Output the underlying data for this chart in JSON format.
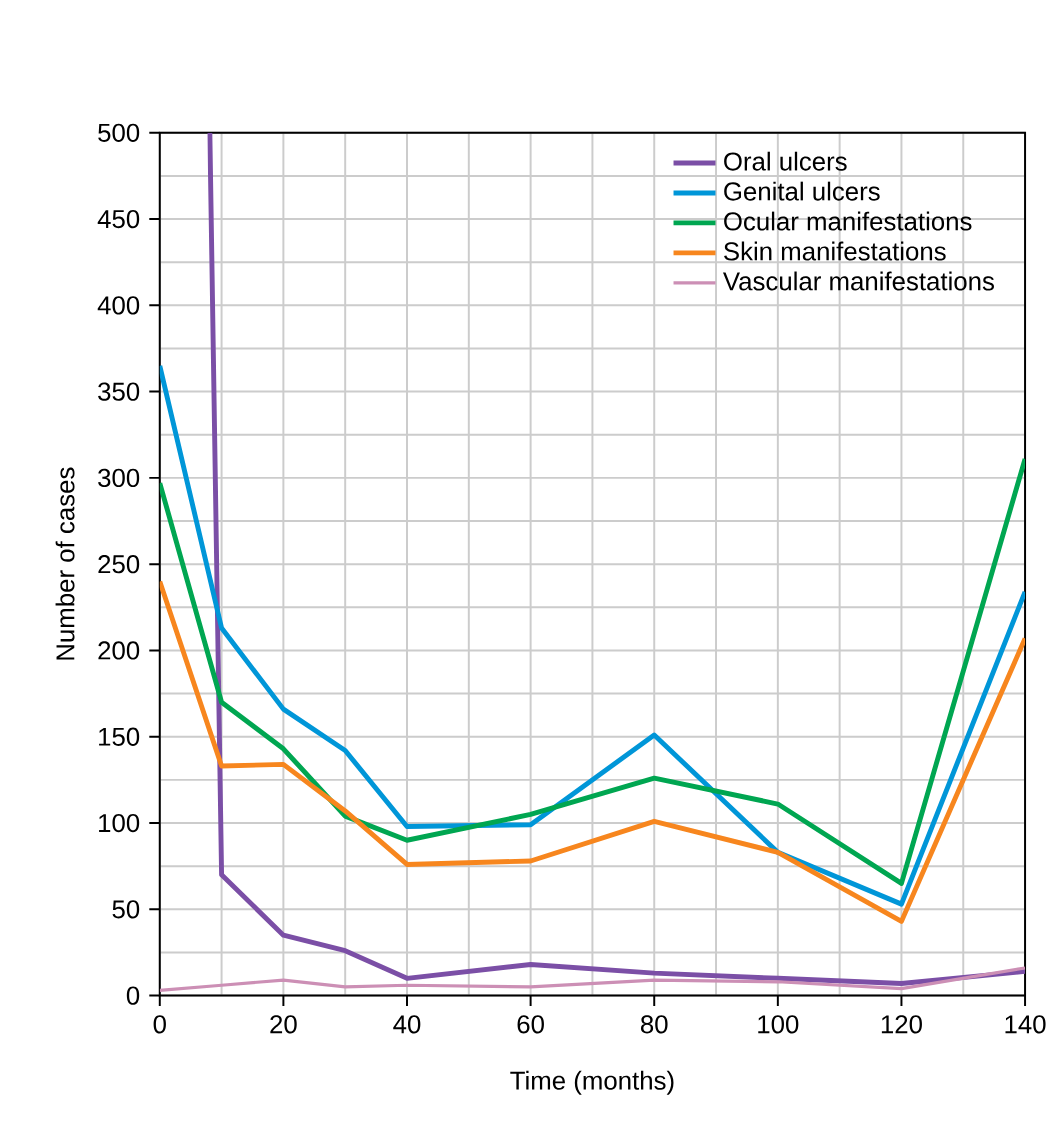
{
  "chart_data": {
    "type": "line",
    "xlabel": "Time (months)",
    "ylabel": "Number of cases",
    "x": [
      0,
      10,
      20,
      30,
      40,
      60,
      80,
      100,
      120,
      140
    ],
    "xlim": [
      0,
      140
    ],
    "xticks": [
      0,
      20,
      40,
      60,
      80,
      100,
      120,
      140
    ],
    "ylim": [
      0,
      500
    ],
    "yticks": [
      0,
      50,
      100,
      150,
      200,
      250,
      300,
      350,
      400,
      450,
      500
    ],
    "grid": true,
    "legend": "top right",
    "marker": "none",
    "line_style": "solid",
    "series": [
      {
        "name": "Oral ulcers",
        "color": "#7b4fa6",
        "x": [
          8.1,
          10,
          20,
          30,
          40,
          60,
          80,
          100,
          120,
          140
        ],
        "values": [
          500,
          70,
          35,
          26,
          10,
          18,
          13,
          10,
          7,
          14
        ]
      },
      {
        "name": "Genital ulcers",
        "color": "#0096d8",
        "values": [
          365,
          213,
          166,
          142,
          98,
          99,
          151,
          83,
          53,
          234
        ]
      },
      {
        "name": "Ocular manifestations",
        "color": "#00a651",
        "values": [
          297,
          170,
          143,
          104,
          90,
          105,
          126,
          111,
          65,
          311
        ]
      },
      {
        "name": "Skin manifestations",
        "color": "#f7861e",
        "values": [
          240,
          133,
          134,
          107,
          76,
          78,
          101,
          83,
          43,
          207
        ]
      },
      {
        "name": "Vascular manifestations",
        "color": "#cc8fb5",
        "values": [
          3,
          6,
          9,
          5,
          6,
          5,
          9,
          8,
          4,
          16
        ]
      }
    ]
  }
}
